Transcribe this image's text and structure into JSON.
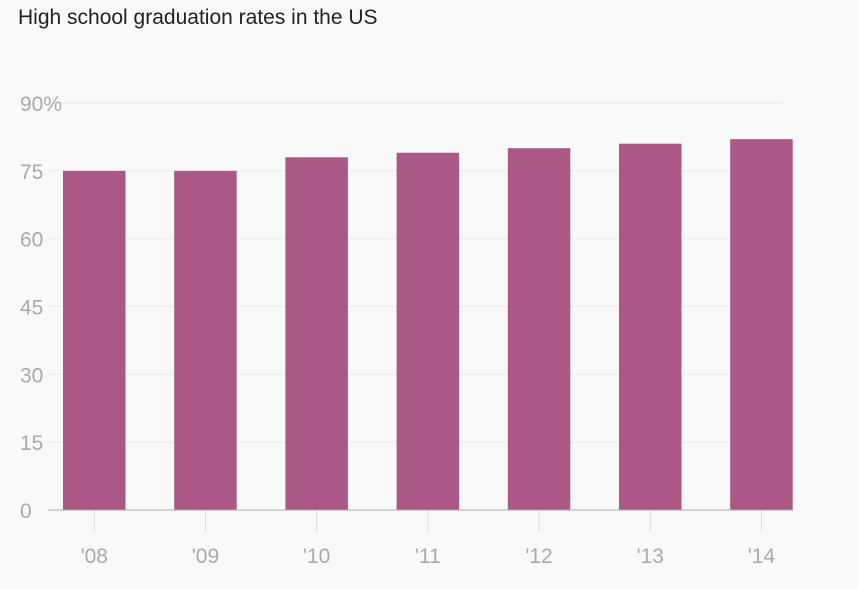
{
  "chart_data": {
    "type": "bar",
    "title": "High school graduation rates in the US",
    "categories": [
      "'08",
      "'09",
      "'10",
      "'11",
      "'12",
      "'13",
      "'14"
    ],
    "values": [
      75,
      75,
      78,
      79,
      80,
      81,
      82
    ],
    "ylim": [
      0,
      90
    ],
    "yticks": [
      0,
      15,
      30,
      45,
      60,
      75,
      90
    ],
    "ytick_labels": [
      "0",
      "15",
      "30",
      "45",
      "60",
      "75",
      "90%"
    ],
    "xlabel": "",
    "ylabel": "",
    "grid": true,
    "bar_color": "#ab5886"
  }
}
